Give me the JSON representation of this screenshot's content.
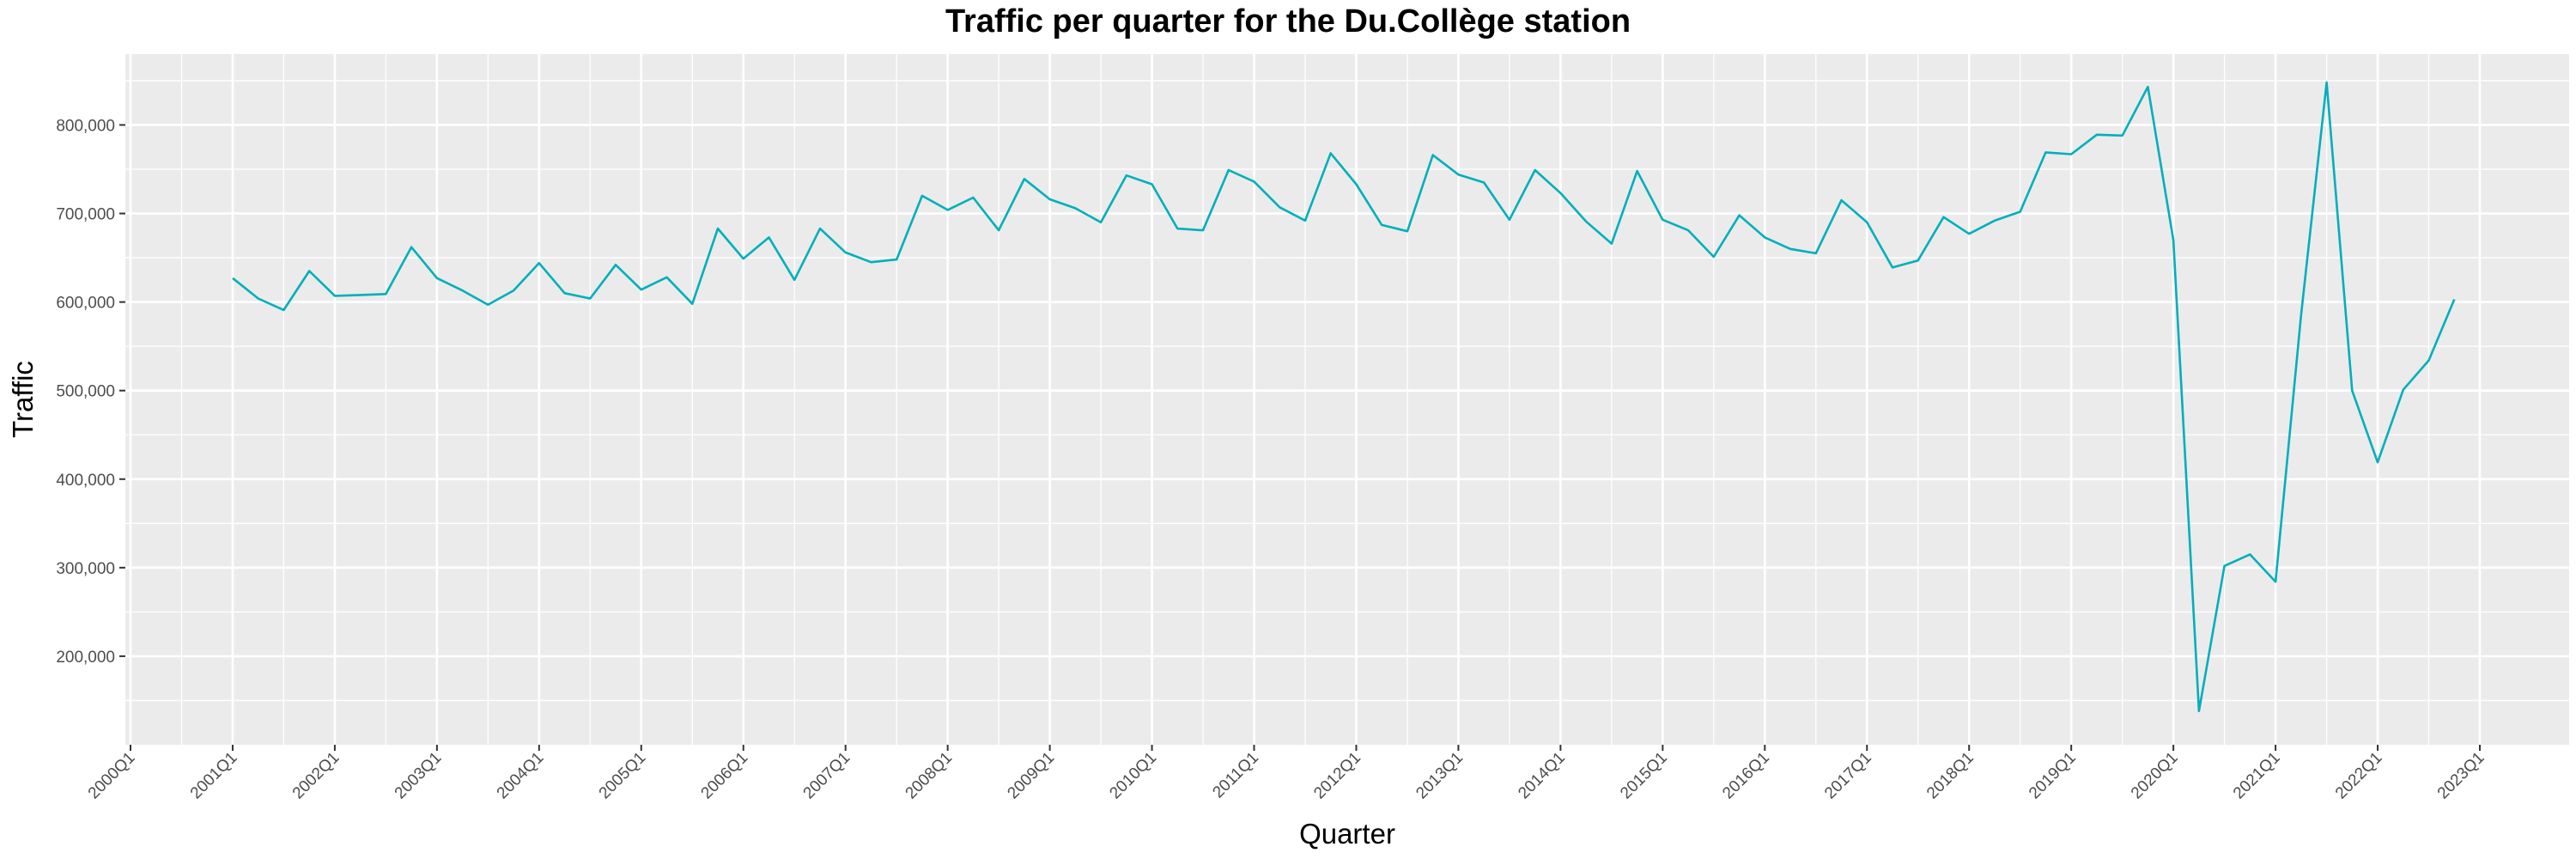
{
  "chart_data": {
    "type": "line",
    "title": "Traffic per quarter for the Du.Collège station",
    "xlabel": "Quarter",
    "ylabel": "Traffic",
    "line_color": "#00AFBB",
    "panel_background": "#EBEBEB",
    "grid_color": "#FFFFFF",
    "grid": true,
    "legend": "none",
    "ylim": [
      100000,
      880000
    ],
    "xlim": [
      "2000Q1",
      "2023Q1"
    ],
    "x_ticks": [
      "2000Q1",
      "2001Q1",
      "2002Q1",
      "2003Q1",
      "2004Q1",
      "2005Q1",
      "2006Q1",
      "2007Q1",
      "2008Q1",
      "2009Q1",
      "2010Q1",
      "2011Q1",
      "2012Q1",
      "2013Q1",
      "2014Q1",
      "2015Q1",
      "2016Q1",
      "2017Q1",
      "2018Q1",
      "2019Q1",
      "2020Q1",
      "2021Q1",
      "2022Q1",
      "2023Q1"
    ],
    "y_ticks": [
      200000,
      300000,
      400000,
      500000,
      600000,
      700000,
      800000
    ],
    "y_tick_labels": [
      "200,000",
      "300,000",
      "400,000",
      "500,000",
      "600,000",
      "700,000",
      "800,000"
    ],
    "x": [
      "2001Q1",
      "2001Q2",
      "2001Q3",
      "2001Q4",
      "2002Q1",
      "2002Q2",
      "2002Q3",
      "2002Q4",
      "2003Q1",
      "2003Q2",
      "2003Q3",
      "2003Q4",
      "2004Q1",
      "2004Q2",
      "2004Q3",
      "2004Q4",
      "2005Q1",
      "2005Q2",
      "2005Q3",
      "2005Q4",
      "2006Q1",
      "2006Q2",
      "2006Q3",
      "2006Q4",
      "2007Q1",
      "2007Q2",
      "2007Q3",
      "2007Q4",
      "2008Q1",
      "2008Q2",
      "2008Q3",
      "2008Q4",
      "2009Q1",
      "2009Q2",
      "2009Q3",
      "2009Q4",
      "2010Q1",
      "2010Q2",
      "2010Q3",
      "2010Q4",
      "2011Q1",
      "2011Q2",
      "2011Q3",
      "2011Q4",
      "2012Q1",
      "2012Q2",
      "2012Q3",
      "2012Q4",
      "2013Q1",
      "2013Q2",
      "2013Q3",
      "2013Q4",
      "2014Q1",
      "2014Q2",
      "2014Q3",
      "2014Q4",
      "2015Q1",
      "2015Q2",
      "2015Q3",
      "2015Q4",
      "2016Q1",
      "2016Q2",
      "2016Q3",
      "2016Q4",
      "2017Q1",
      "2017Q2",
      "2017Q3",
      "2017Q4",
      "2018Q1",
      "2018Q2",
      "2018Q3",
      "2018Q4",
      "2019Q1",
      "2019Q2",
      "2019Q3",
      "2019Q4",
      "2020Q1",
      "2020Q2",
      "2020Q3",
      "2020Q4",
      "2021Q1",
      "2021Q2",
      "2021Q3",
      "2021Q4",
      "2022Q1",
      "2022Q2",
      "2022Q3",
      "2022Q4"
    ],
    "values": [
      627000,
      604000,
      591000,
      635000,
      607000,
      608000,
      609000,
      662000,
      627000,
      613000,
      597000,
      613000,
      644000,
      610000,
      604000,
      642000,
      614000,
      628000,
      598000,
      683000,
      649000,
      673000,
      625000,
      683000,
      656000,
      645000,
      648000,
      720000,
      704000,
      718000,
      681000,
      739000,
      716000,
      706000,
      690000,
      743000,
      733000,
      683000,
      681000,
      749000,
      736000,
      707000,
      692000,
      768000,
      733000,
      687000,
      680000,
      766000,
      744000,
      735000,
      693000,
      749000,
      723000,
      691000,
      666000,
      748000,
      693000,
      681000,
      651000,
      698000,
      673000,
      660000,
      655000,
      715000,
      690000,
      639000,
      647000,
      696000,
      677000,
      692000,
      702000,
      769000,
      767000,
      789000,
      788000,
      843000,
      670000,
      138000,
      302000,
      315000,
      284000,
      585000,
      848000,
      500000,
      419000,
      501000,
      534000,
      603000
    ]
  }
}
